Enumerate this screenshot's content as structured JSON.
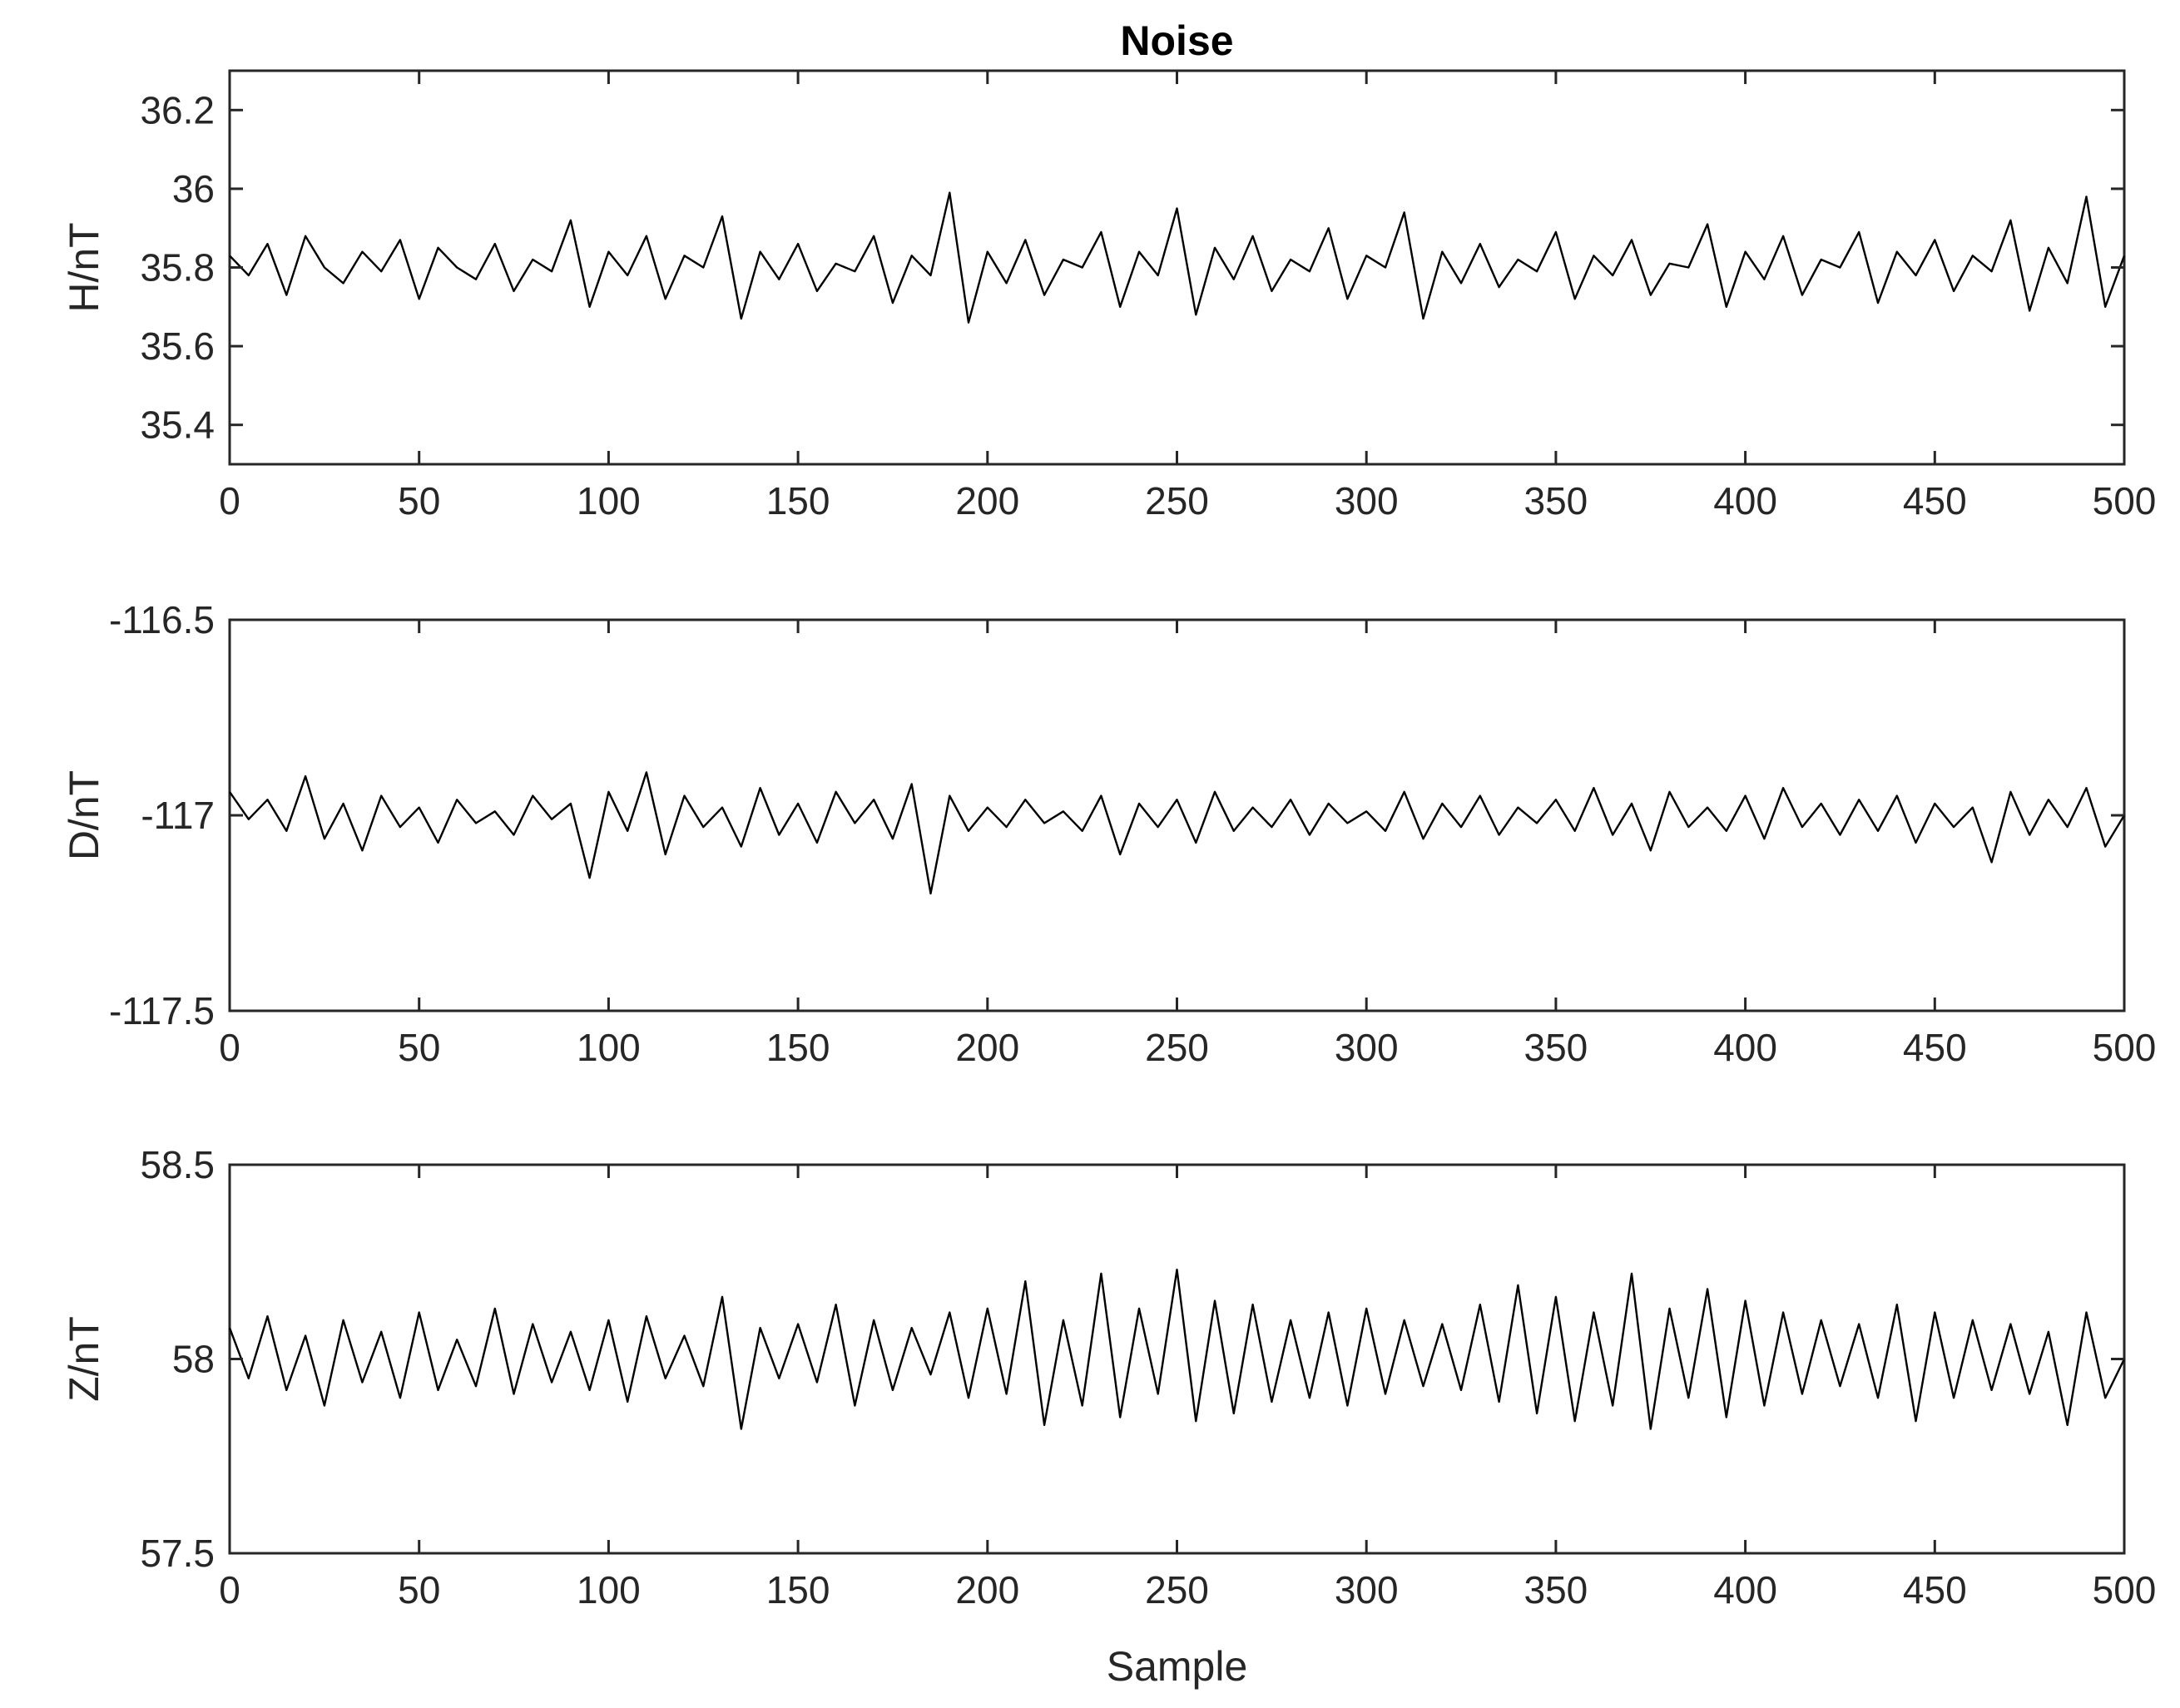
{
  "title": "Noise",
  "xlabel": "Sample",
  "chart_data": [
    {
      "type": "line",
      "ylabel": "H/nT",
      "xlim": [
        0,
        500
      ],
      "ylim": [
        35.3,
        36.3
      ],
      "xticks": [
        "0",
        "50",
        "100",
        "150",
        "200",
        "250",
        "300",
        "350",
        "400",
        "450",
        "500"
      ],
      "yticks": [
        "35.4",
        "35.6",
        "35.8",
        "36",
        "36.2"
      ],
      "series": [
        {
          "x_start": 0,
          "x_step": 5,
          "values": [
            35.83,
            35.78,
            35.86,
            35.73,
            35.88,
            35.8,
            35.76,
            35.84,
            35.79,
            35.87,
            35.72,
            35.85,
            35.8,
            35.77,
            35.86,
            35.74,
            35.82,
            35.79,
            35.92,
            35.7,
            35.84,
            35.78,
            35.88,
            35.72,
            35.83,
            35.8,
            35.93,
            35.67,
            35.84,
            35.77,
            35.86,
            35.74,
            35.81,
            35.79,
            35.88,
            35.71,
            35.83,
            35.78,
            35.99,
            35.66,
            35.84,
            35.76,
            35.87,
            35.73,
            35.82,
            35.8,
            35.89,
            35.7,
            35.84,
            35.78,
            35.95,
            35.68,
            35.85,
            35.77,
            35.88,
            35.74,
            35.82,
            35.79,
            35.9,
            35.72,
            35.83,
            35.8,
            35.94,
            35.67,
            35.84,
            35.76,
            35.86,
            35.75,
            35.82,
            35.79,
            35.89,
            35.72,
            35.83,
            35.78,
            35.87,
            35.73,
            35.81,
            35.8,
            35.91,
            35.7,
            35.84,
            35.77,
            35.88,
            35.73,
            35.82,
            35.8,
            35.89,
            35.71,
            35.84,
            35.78,
            35.87,
            35.74,
            35.83,
            35.79,
            35.92,
            35.69,
            35.85,
            35.76,
            35.98,
            35.7,
            35.83
          ]
        }
      ]
    },
    {
      "type": "line",
      "ylabel": "D/nT",
      "xlim": [
        0,
        500
      ],
      "ylim": [
        -117.5,
        -116.5
      ],
      "xticks": [
        "0",
        "50",
        "100",
        "150",
        "200",
        "250",
        "300",
        "350",
        "400",
        "450",
        "500"
      ],
      "yticks": [
        "-117.5",
        "-117",
        "-116.5"
      ],
      "series": [
        {
          "x_start": 0,
          "x_step": 5,
          "values": [
            -116.94,
            -117.01,
            -116.96,
            -117.04,
            -116.9,
            -117.06,
            -116.97,
            -117.09,
            -116.95,
            -117.03,
            -116.98,
            -117.07,
            -116.96,
            -117.02,
            -116.99,
            -117.05,
            -116.95,
            -117.01,
            -116.97,
            -117.16,
            -116.94,
            -117.04,
            -116.89,
            -117.1,
            -116.95,
            -117.03,
            -116.98,
            -117.08,
            -116.93,
            -117.05,
            -116.97,
            -117.07,
            -116.94,
            -117.02,
            -116.96,
            -117.06,
            -116.92,
            -117.2,
            -116.95,
            -117.04,
            -116.98,
            -117.03,
            -116.96,
            -117.02,
            -116.99,
            -117.04,
            -116.95,
            -117.1,
            -116.97,
            -117.03,
            -116.96,
            -117.07,
            -116.94,
            -117.04,
            -116.98,
            -117.03,
            -116.96,
            -117.05,
            -116.97,
            -117.02,
            -116.99,
            -117.04,
            -116.94,
            -117.06,
            -116.97,
            -117.03,
            -116.95,
            -117.05,
            -116.98,
            -117.02,
            -116.96,
            -117.04,
            -116.93,
            -117.05,
            -116.97,
            -117.09,
            -116.94,
            -117.03,
            -116.98,
            -117.04,
            -116.95,
            -117.06,
            -116.93,
            -117.03,
            -116.97,
            -117.05,
            -116.96,
            -117.04,
            -116.95,
            -117.07,
            -116.97,
            -117.03,
            -116.98,
            -117.12,
            -116.94,
            -117.05,
            -116.96,
            -117.03,
            -116.93,
            -117.08,
            -117.0
          ]
        }
      ]
    },
    {
      "type": "line",
      "ylabel": "Z/nT",
      "xlim": [
        0,
        500
      ],
      "ylim": [
        57.5,
        58.5
      ],
      "xticks": [
        "0",
        "50",
        "100",
        "150",
        "200",
        "250",
        "300",
        "350",
        "400",
        "450",
        "500"
      ],
      "yticks": [
        "57.5",
        "58",
        "58.5"
      ],
      "series": [
        {
          "x_start": 0,
          "x_step": 5,
          "values": [
            58.08,
            57.95,
            58.11,
            57.92,
            58.06,
            57.88,
            58.1,
            57.94,
            58.07,
            57.9,
            58.12,
            57.92,
            58.05,
            57.93,
            58.13,
            57.91,
            58.09,
            57.94,
            58.07,
            57.92,
            58.1,
            57.89,
            58.11,
            57.95,
            58.06,
            57.93,
            58.16,
            57.82,
            58.08,
            57.95,
            58.09,
            57.94,
            58.14,
            57.88,
            58.1,
            57.92,
            58.08,
            57.96,
            58.12,
            57.9,
            58.13,
            57.91,
            58.2,
            57.83,
            58.1,
            57.88,
            58.22,
            57.85,
            58.13,
            57.91,
            58.23,
            57.84,
            58.15,
            57.86,
            58.14,
            57.89,
            58.1,
            57.9,
            58.12,
            57.88,
            58.13,
            57.91,
            58.1,
            57.93,
            58.09,
            57.92,
            58.14,
            57.89,
            58.19,
            57.86,
            58.16,
            57.84,
            58.12,
            57.88,
            58.22,
            57.82,
            58.13,
            57.9,
            58.18,
            57.85,
            58.15,
            57.88,
            58.12,
            57.91,
            58.1,
            57.93,
            58.09,
            57.9,
            58.14,
            57.84,
            58.12,
            57.9,
            58.1,
            57.92,
            58.09,
            57.91,
            58.07,
            57.83,
            58.12,
            57.9,
            58.0
          ]
        }
      ]
    }
  ]
}
